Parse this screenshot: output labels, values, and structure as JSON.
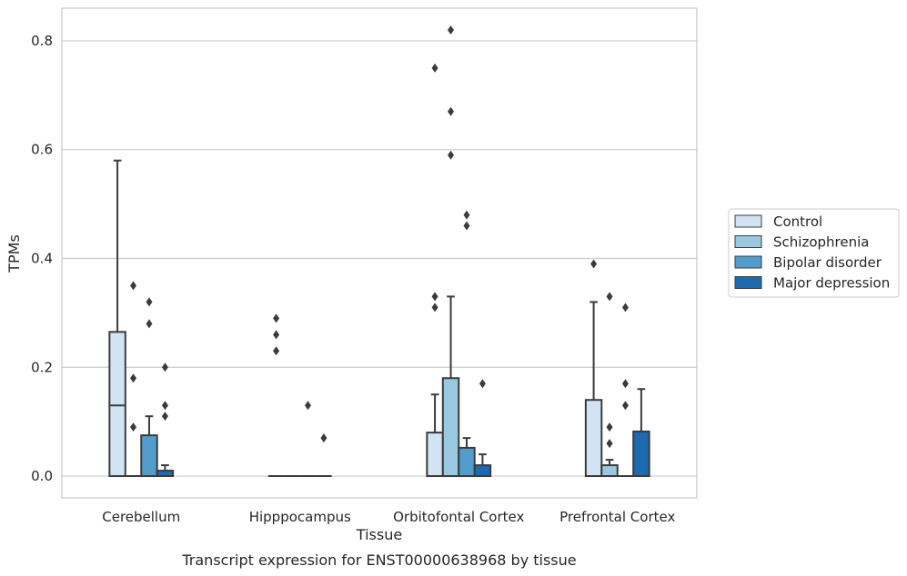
{
  "chart_data": {
    "type": "box",
    "title": "",
    "caption": "Transcript expression for ENST00000638968 by tissue",
    "xlabel": "Tissue",
    "ylabel": "TPMs",
    "ylim": [
      -0.04,
      0.86
    ],
    "yticks": [
      0.0,
      0.2,
      0.4,
      0.6,
      0.8
    ],
    "ytick_labels": [
      "0.0",
      "0.2",
      "0.4",
      "0.6",
      "0.8"
    ],
    "grid": "horizontal",
    "legend_position": "right",
    "categories": [
      "Cerebellum",
      "Hipppocampus",
      "Orbitofontal Cortex",
      "Prefrontal Cortex"
    ],
    "series": [
      {
        "name": "Control",
        "color": "#d2e3f3",
        "boxes": [
          {
            "q1": 0.0,
            "median": 0.13,
            "q3": 0.265,
            "whisker_low": 0.0,
            "whisker_high": 0.58,
            "outliers": []
          },
          {
            "q1": 0.0,
            "median": 0.0,
            "q3": 0.0,
            "whisker_low": 0.0,
            "whisker_high": 0.0,
            "outliers": [
              0.23,
              0.26,
              0.29
            ]
          },
          {
            "q1": 0.0,
            "median": 0.0,
            "q3": 0.08,
            "whisker_low": 0.0,
            "whisker_high": 0.15,
            "outliers": [
              0.31,
              0.33,
              0.75
            ]
          },
          {
            "q1": 0.0,
            "median": 0.0,
            "q3": 0.14,
            "whisker_low": 0.0,
            "whisker_high": 0.32,
            "outliers": [
              0.39
            ]
          }
        ]
      },
      {
        "name": "Schizophrenia",
        "color": "#9ac8e0",
        "boxes": [
          {
            "q1": 0.0,
            "median": 0.0,
            "q3": 0.0,
            "whisker_low": 0.0,
            "whisker_high": 0.0,
            "outliers": [
              0.09,
              0.18,
              0.35
            ]
          },
          {
            "q1": 0.0,
            "median": 0.0,
            "q3": 0.0,
            "whisker_low": 0.0,
            "whisker_high": 0.0,
            "outliers": []
          },
          {
            "q1": 0.0,
            "median": 0.0,
            "q3": 0.18,
            "whisker_low": 0.0,
            "whisker_high": 0.33,
            "outliers": [
              0.59,
              0.67,
              0.82
            ]
          },
          {
            "q1": 0.0,
            "median": 0.0,
            "q3": 0.02,
            "whisker_low": 0.0,
            "whisker_high": 0.03,
            "outliers": [
              0.06,
              0.09,
              0.33
            ]
          }
        ]
      },
      {
        "name": "Bipolar disorder",
        "color": "#529dcc",
        "boxes": [
          {
            "q1": 0.0,
            "median": 0.0,
            "q3": 0.075,
            "whisker_low": 0.0,
            "whisker_high": 0.11,
            "outliers": [
              0.28,
              0.32
            ]
          },
          {
            "q1": 0.0,
            "median": 0.0,
            "q3": 0.0,
            "whisker_low": 0.0,
            "whisker_high": 0.0,
            "outliers": [
              0.13
            ]
          },
          {
            "q1": 0.0,
            "median": 0.0,
            "q3": 0.052,
            "whisker_low": 0.0,
            "whisker_high": 0.07,
            "outliers": [
              0.46,
              0.48
            ]
          },
          {
            "q1": 0.0,
            "median": 0.0,
            "q3": 0.0,
            "whisker_low": 0.0,
            "whisker_high": 0.0,
            "outliers": [
              0.13,
              0.17,
              0.31
            ]
          }
        ]
      },
      {
        "name": "Major depression",
        "color": "#1c6aaf",
        "boxes": [
          {
            "q1": 0.0,
            "median": 0.0,
            "q3": 0.01,
            "whisker_low": 0.0,
            "whisker_high": 0.02,
            "outliers": [
              0.11,
              0.13,
              0.2
            ]
          },
          {
            "q1": 0.0,
            "median": 0.0,
            "q3": 0.0,
            "whisker_low": 0.0,
            "whisker_high": 0.0,
            "outliers": [
              0.07
            ]
          },
          {
            "q1": 0.0,
            "median": 0.0,
            "q3": 0.02,
            "whisker_low": 0.0,
            "whisker_high": 0.04,
            "outliers": [
              0.17
            ]
          },
          {
            "q1": 0.0,
            "median": 0.0,
            "q3": 0.082,
            "whisker_low": 0.0,
            "whisker_high": 0.16,
            "outliers": []
          }
        ]
      }
    ]
  }
}
